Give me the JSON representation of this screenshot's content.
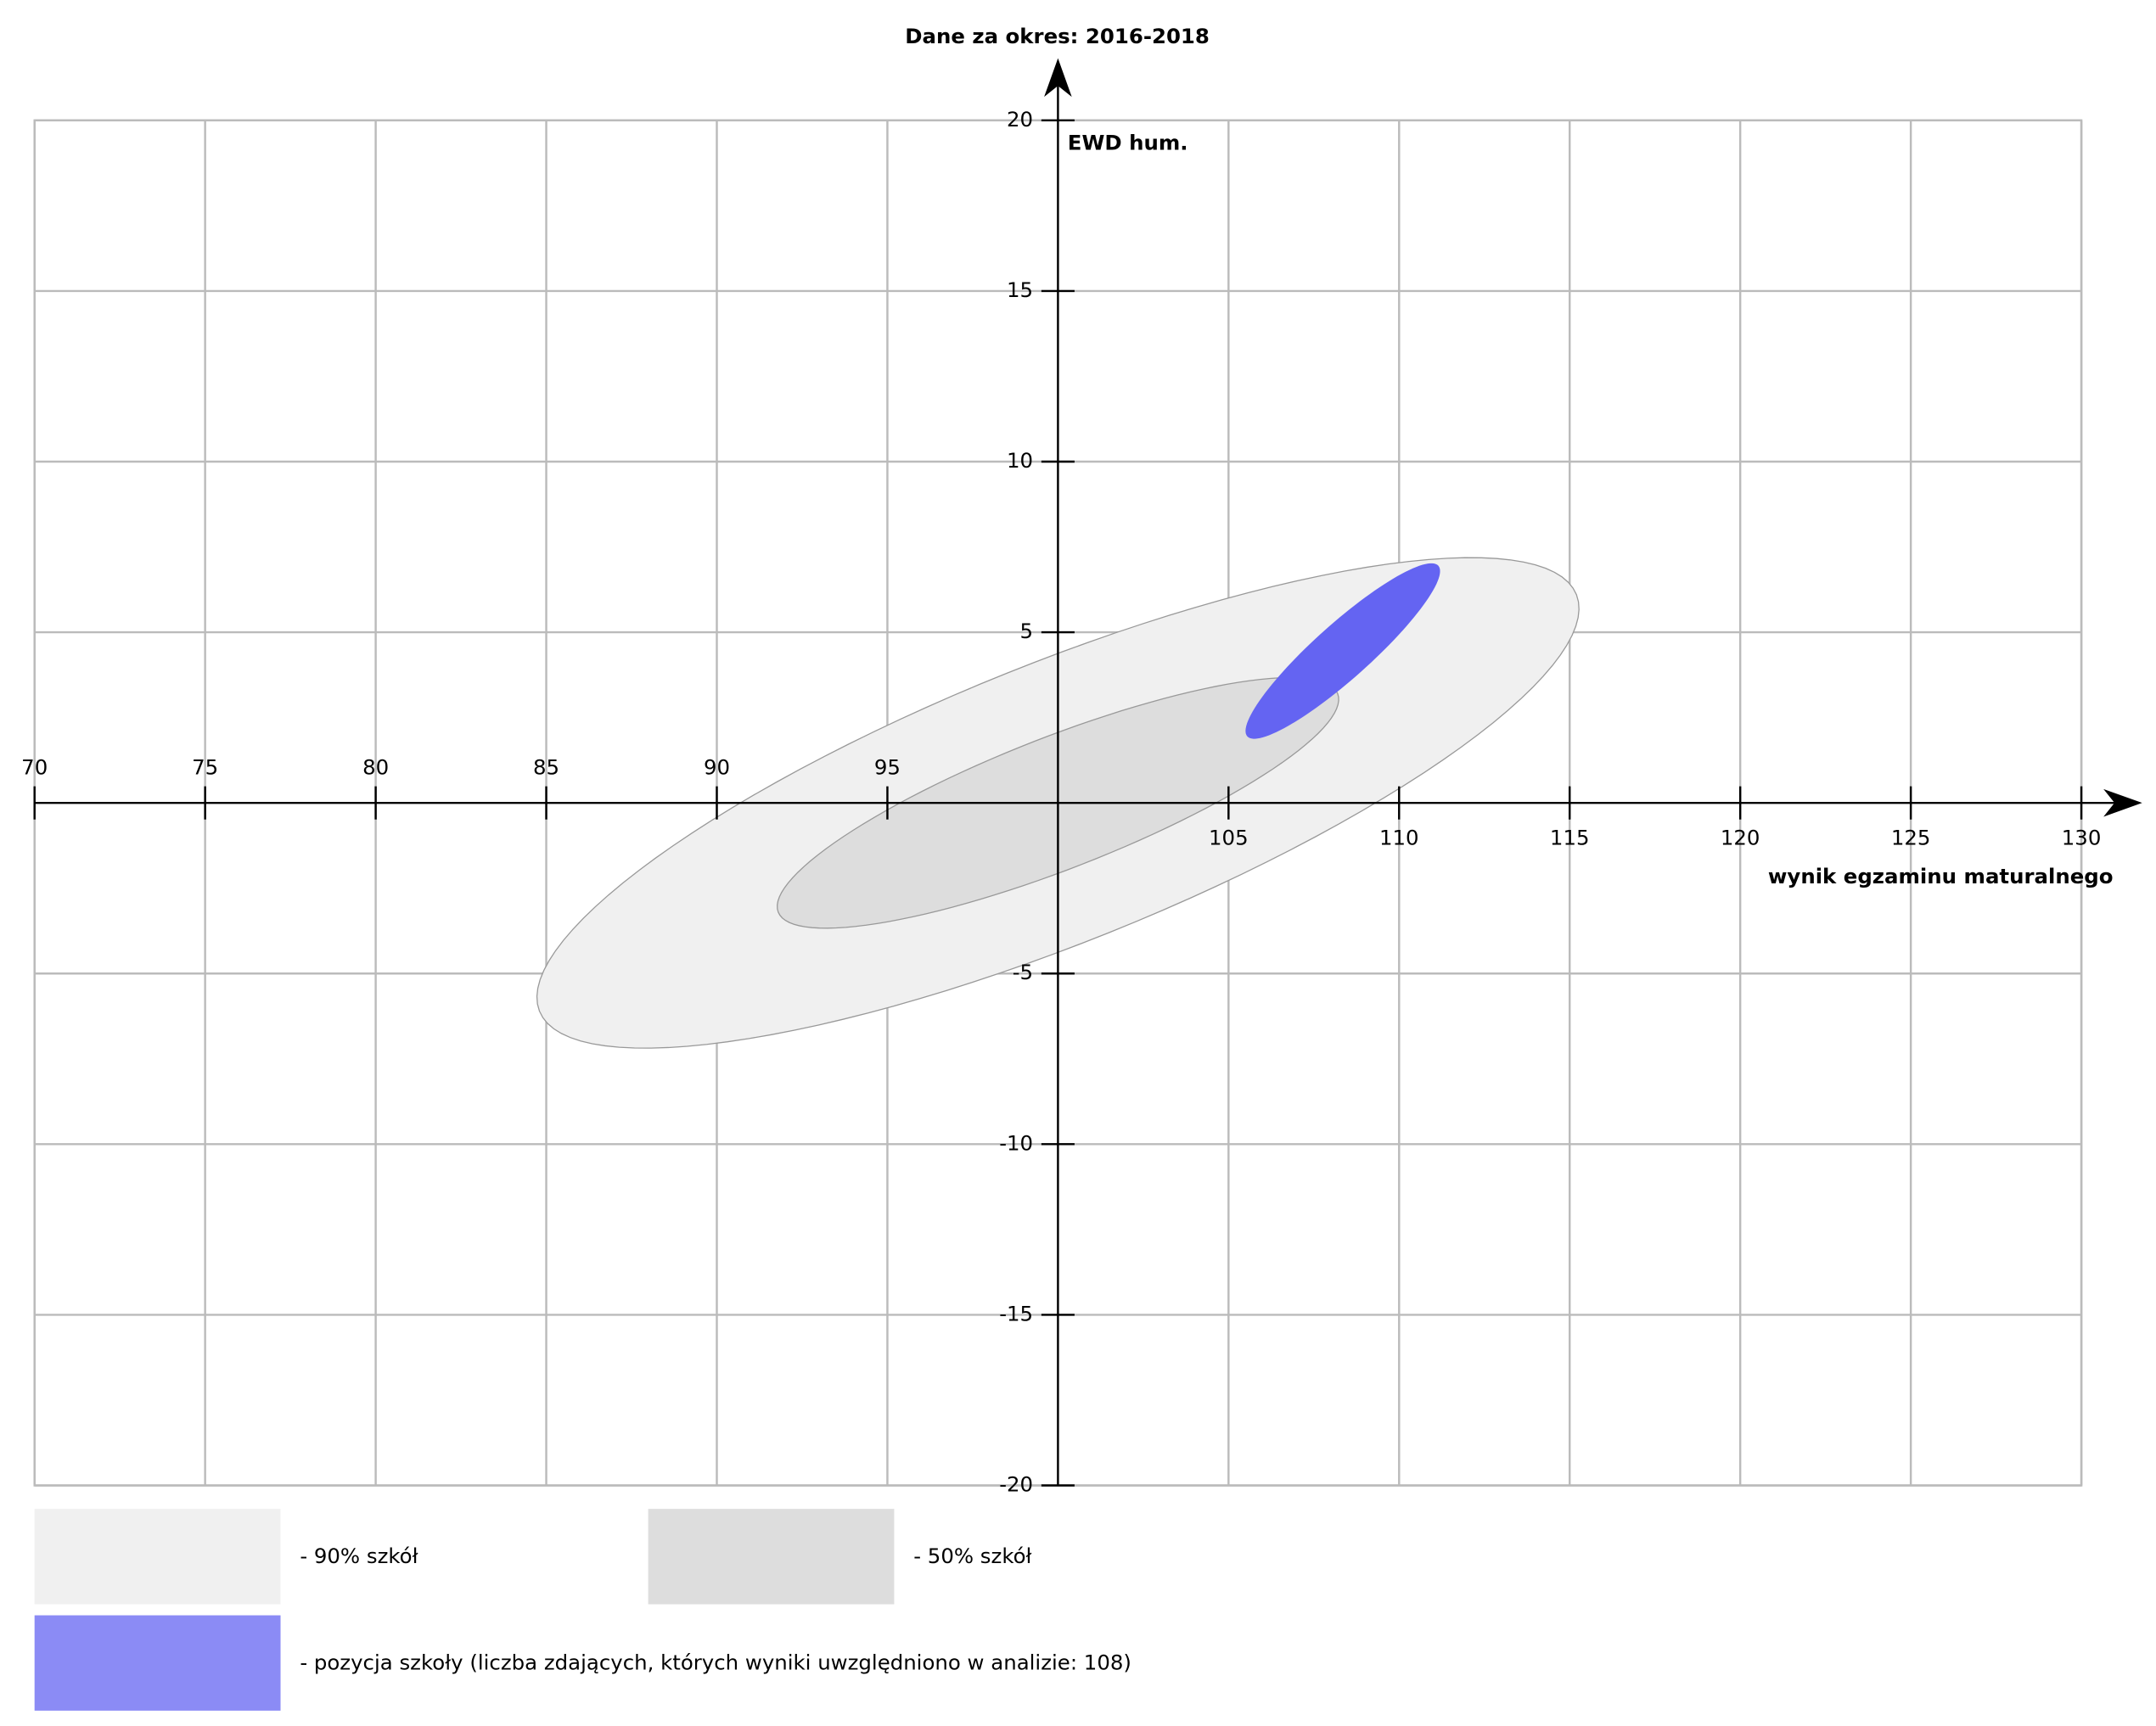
{
  "chart_data": {
    "type": "ellipse",
    "title": "Dane za okres: 2016-2018",
    "x_label": "wynik egzaminu maturalnego",
    "y_label": "EWD hum.",
    "xlim": [
      70,
      130
    ],
    "ylim": [
      -20,
      20
    ],
    "xticks": [
      70,
      75,
      80,
      85,
      90,
      95,
      105,
      110,
      115,
      120,
      125,
      130
    ],
    "yticks": [
      -20,
      -15,
      -10,
      -5,
      5,
      10,
      15,
      20
    ],
    "grid": true,
    "series": [
      {
        "name": "- 90% szkół",
        "color": "#f0f0f0",
        "center": [
          100,
          0
        ],
        "axis1": [
          15.2,
          6.1
        ],
        "axis2": [
          -1.5,
          3.8
        ]
      },
      {
        "name": "- 50% szkół",
        "color": "#dddddd",
        "center": [
          100,
          0
        ],
        "axis1": [
          8.2,
          3.2
        ],
        "axis2": [
          -0.7,
          1.8
        ]
      },
      {
        "name": "- pozycja szkoły (liczba zdających, których wyniki uwzględniono w analizie: 108)",
        "color": "#6464f2",
        "center": [
          108.35,
          4.45
        ],
        "axis1": [
          2.8,
          2.5
        ],
        "axis2": [
          -0.54,
          0.6
        ]
      }
    ]
  }
}
